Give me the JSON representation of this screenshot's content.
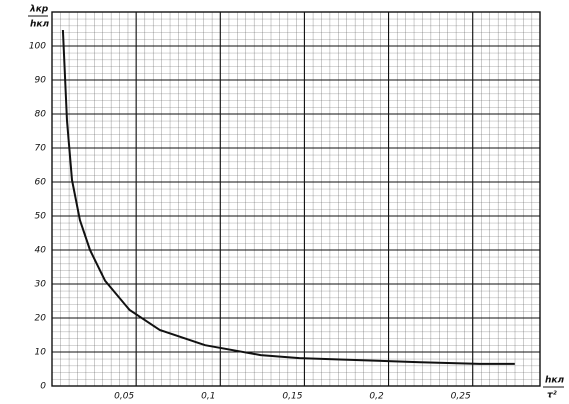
{
  "chart_data": {
    "type": "line",
    "y_label_top": "λкр",
    "y_label_bottom": "hкл",
    "x_label_top": "hкл",
    "x_label_bottom": "τ²",
    "x": [
      0.0065,
      0.0089,
      0.0119,
      0.0166,
      0.0226,
      0.0315,
      0.046,
      0.064,
      0.091,
      0.124,
      0.147,
      0.189,
      0.219,
      0.254,
      0.275
    ],
    "series": [
      {
        "color": "#111111",
        "values": [
          104.7,
          78,
          60.6,
          48.8,
          40,
          31,
          22.4,
          16.5,
          12,
          9.1,
          8.2,
          7.5,
          7,
          6.5,
          6.5
        ]
      }
    ],
    "xlim": [
      0,
      0.29
    ],
    "ylim": [
      0,
      110
    ],
    "xticks": [
      {
        "value": 0.05,
        "label": "0,05"
      },
      {
        "value": 0.1,
        "label": "0,1"
      },
      {
        "value": 0.15,
        "label": "0,15"
      },
      {
        "value": 0.2,
        "label": "0,2"
      },
      {
        "value": 0.25,
        "label": "0,25"
      }
    ],
    "yticks": [
      0,
      10,
      20,
      30,
      40,
      50,
      60,
      70,
      80,
      90,
      100
    ],
    "grid": true
  }
}
